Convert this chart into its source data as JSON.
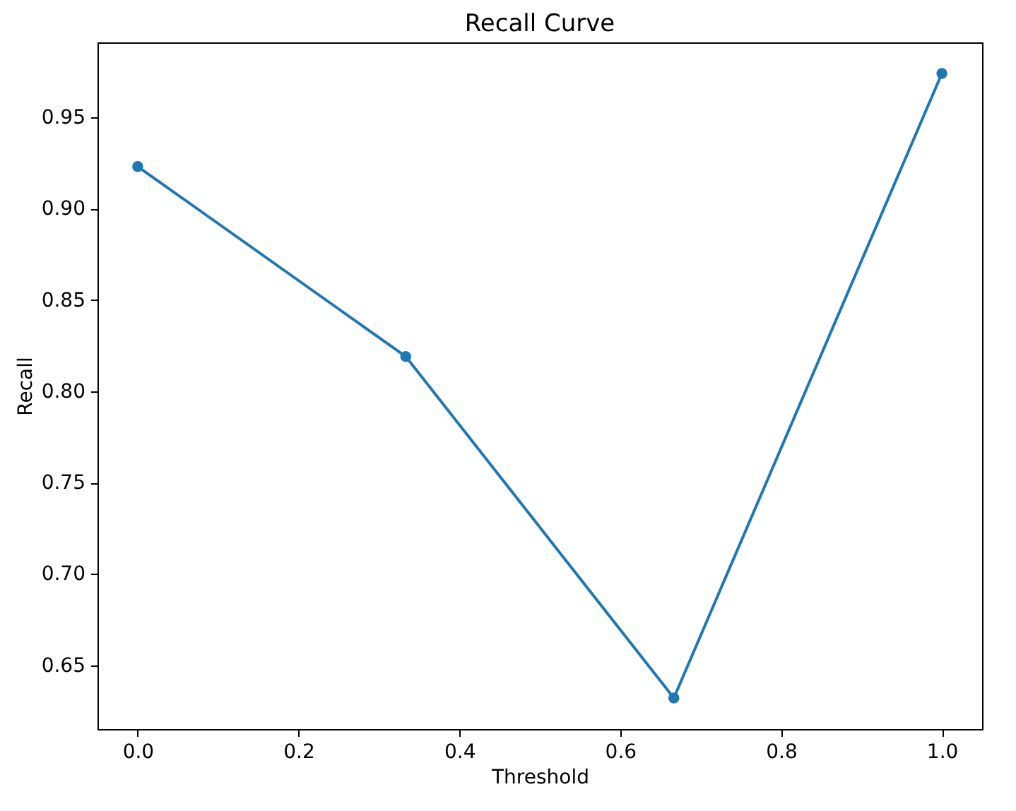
{
  "chart_data": {
    "type": "line",
    "title": "Recall Curve",
    "xlabel": "Threshold",
    "ylabel": "Recall",
    "x": [
      0,
      0.3333,
      0.6667,
      1
    ],
    "series": [
      {
        "color": "#1f77b4",
        "values": [
          0.923,
          0.819,
          0.632,
          0.974
        ]
      }
    ],
    "xlim": [
      -0.05,
      1.05
    ],
    "xticks": [
      {
        "value": 0,
        "label": "0.0"
      },
      0.2,
      0.4,
      0.6,
      0.8,
      {
        "value": 1,
        "label": "1.0"
      }
    ],
    "ylim": [
      0.615,
      0.991
    ],
    "yticks": [
      0.65,
      {
        "value": 0.7,
        "label": "0.70"
      },
      0.75,
      {
        "value": 0.8,
        "label": "0.80"
      },
      0.85,
      {
        "value": 0.9,
        "label": "0.90"
      },
      0.95
    ],
    "marker": "circle",
    "grid": false
  }
}
